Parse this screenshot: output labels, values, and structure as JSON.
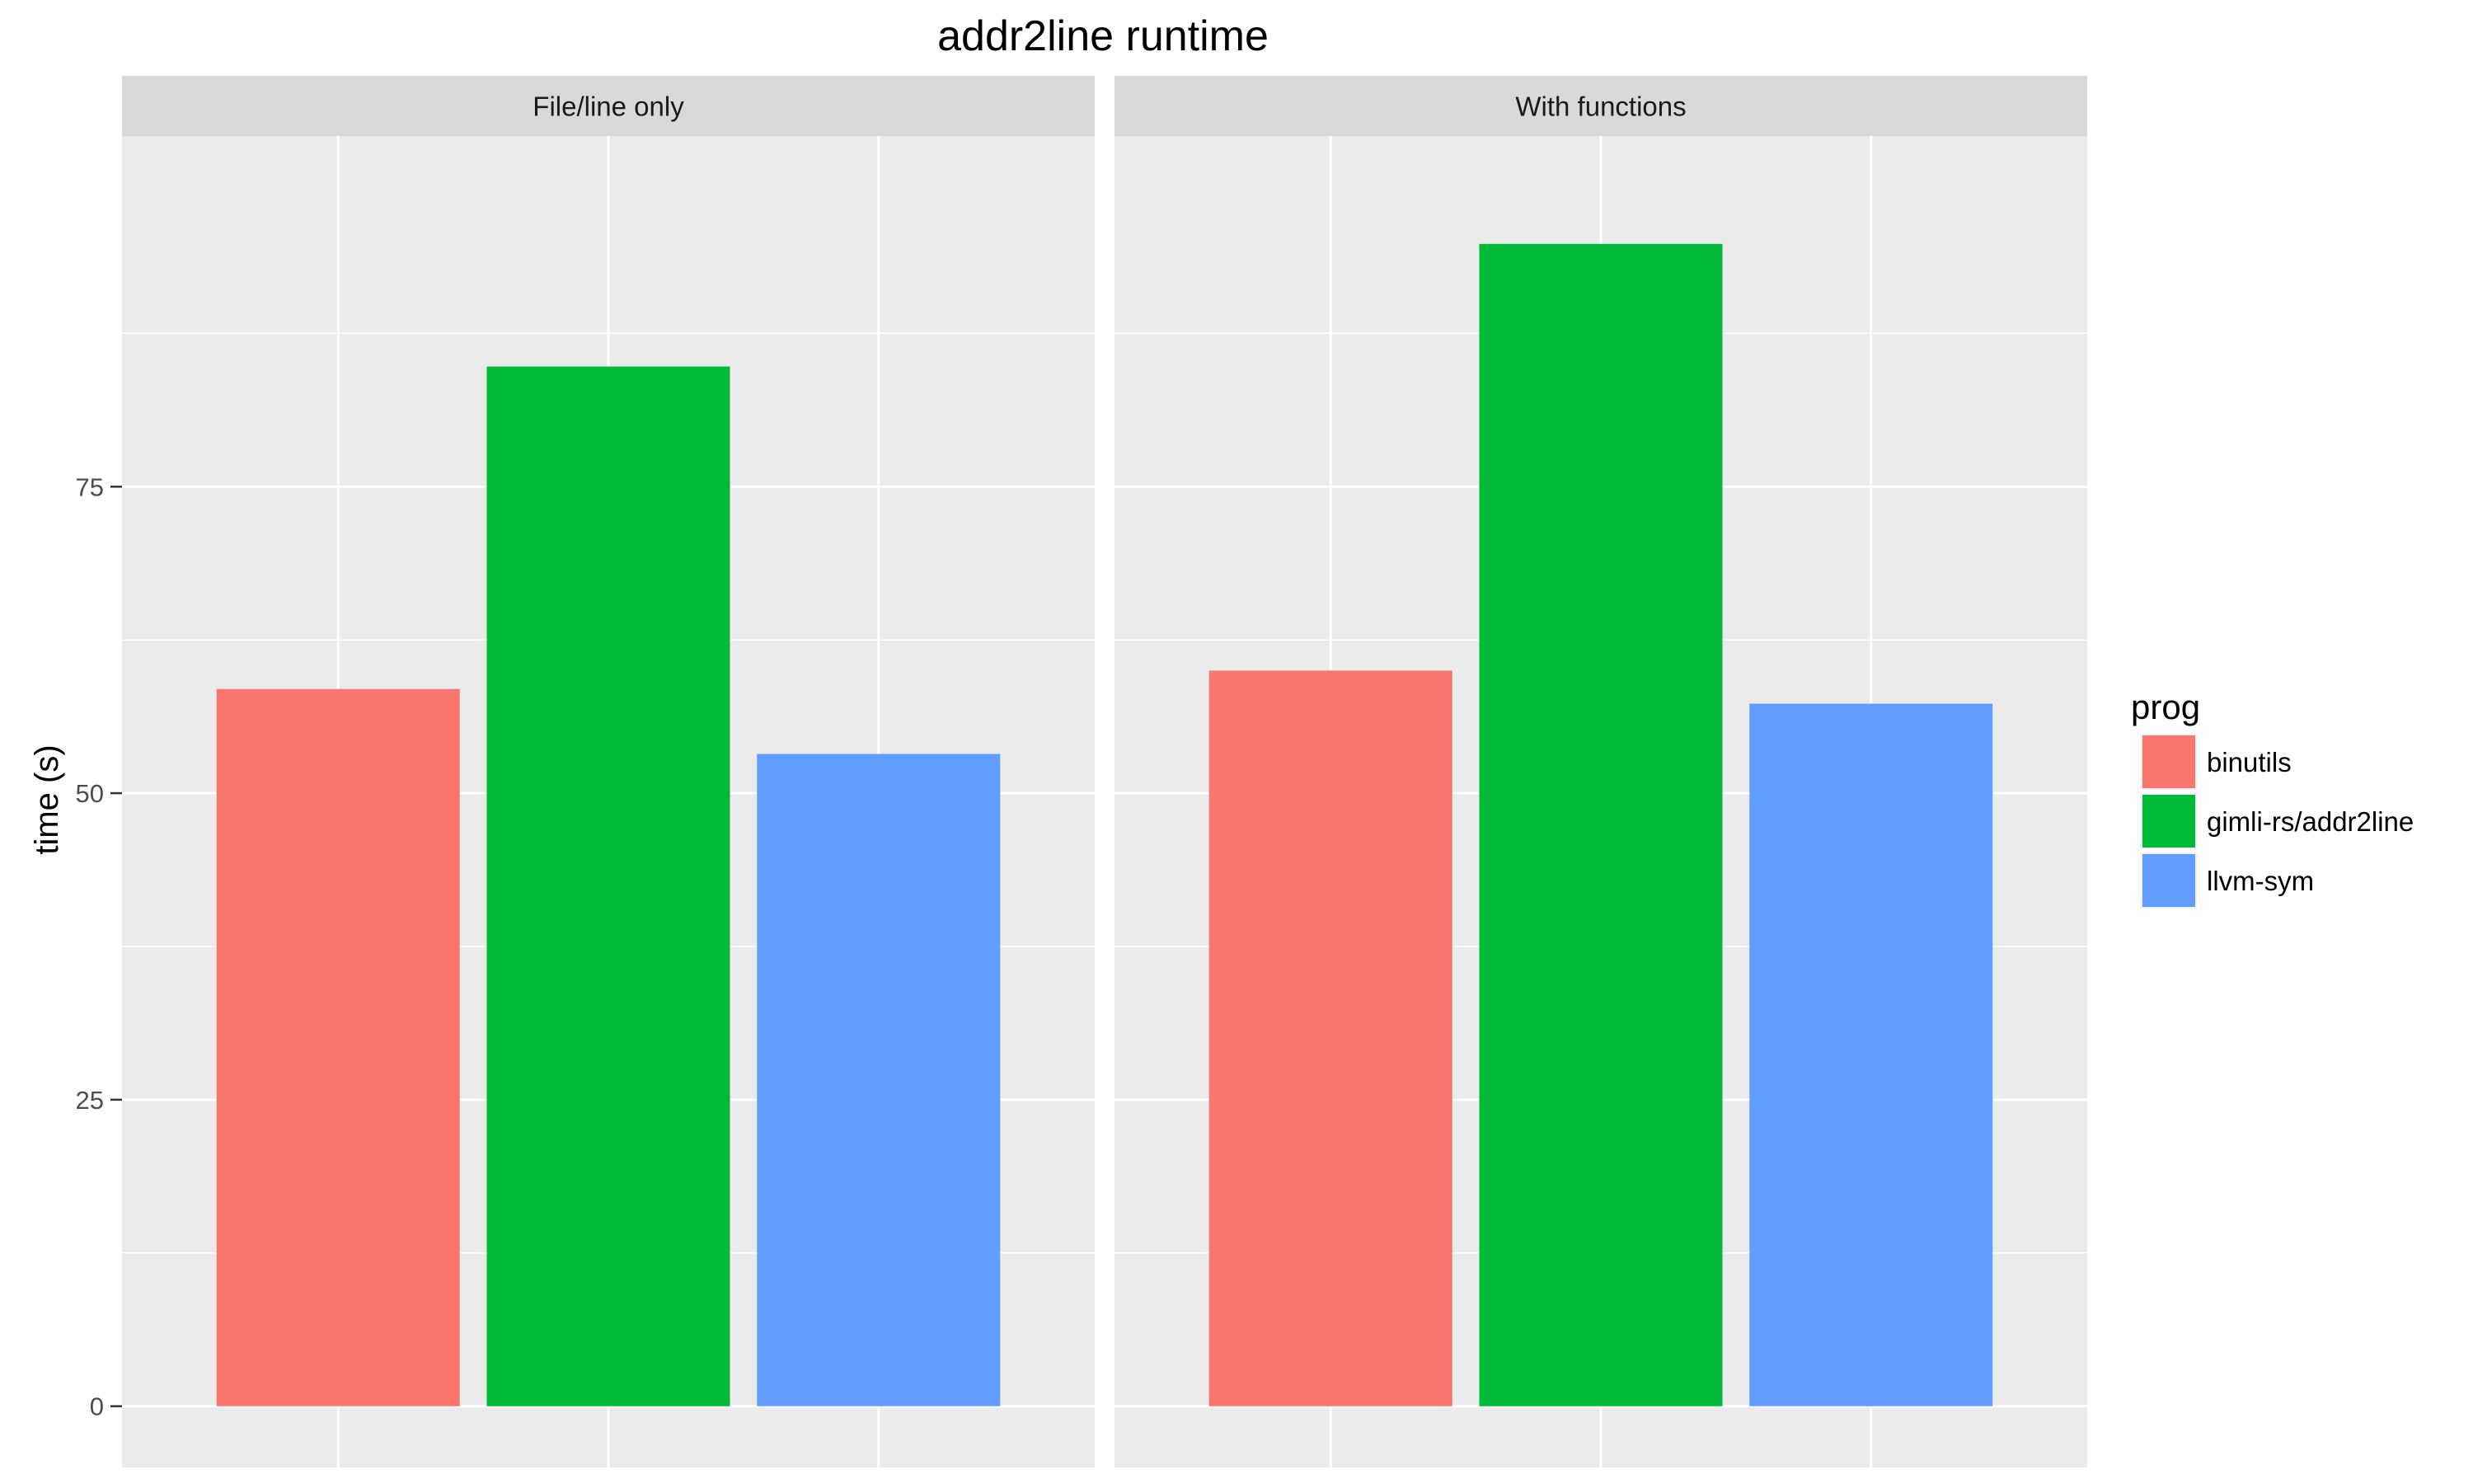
{
  "chart_data": {
    "type": "bar",
    "title": "addr2line runtime",
    "xlabel": "",
    "ylabel": "time (s)",
    "ylim": [
      -5.0,
      103.6
    ],
    "yticks": [
      0,
      25,
      50,
      75
    ],
    "grid": true,
    "legend_position": "right",
    "legend_title": "prog",
    "categories": [
      "binutils",
      "gimli-rs/addr2line",
      "llvm-sym"
    ],
    "colors": [
      "#F8766D",
      "#00BA38",
      "#619CFF"
    ],
    "panels": [
      {
        "label": "File/line only",
        "values": [
          58.5,
          84.8,
          53.2
        ]
      },
      {
        "label": "With functions",
        "values": [
          60.0,
          94.8,
          57.3
        ]
      }
    ]
  }
}
